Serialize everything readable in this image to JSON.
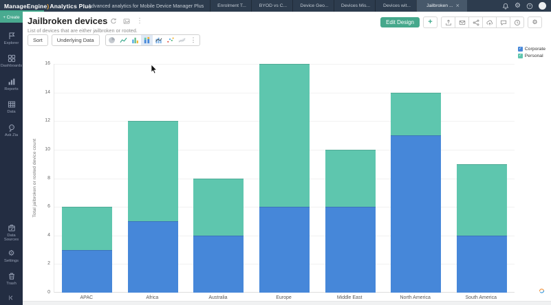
{
  "topbar": {
    "brand_part1": "ManageEngine",
    "brand_part2": "Analytics Plus",
    "workspace_label": "Advanced analytics for Mobile Device Manager Plus",
    "tabs": [
      {
        "label": "Enrolment T...",
        "active": false
      },
      {
        "label": "BYOD vs C...",
        "active": false
      },
      {
        "label": "Device Geo...",
        "active": false
      },
      {
        "label": "Devices Mis...",
        "active": false
      },
      {
        "label": "Devices wit...",
        "active": false
      },
      {
        "label": "Jailbroken ...",
        "active": true
      }
    ]
  },
  "sidebar": {
    "create_label": "+ Create",
    "items": [
      {
        "label": "Explorer",
        "icon": "explorer-icon"
      },
      {
        "label": "Dashboards",
        "icon": "dashboards-icon"
      },
      {
        "label": "Reports",
        "icon": "reports-icon"
      },
      {
        "label": "Data",
        "icon": "data-icon"
      },
      {
        "label": "Ask Zia",
        "icon": "ask-zia-icon"
      }
    ],
    "bottom_items": [
      {
        "label": "Data Sources",
        "icon": "data-sources-icon"
      },
      {
        "label": "Settings",
        "icon": "settings-icon"
      },
      {
        "label": "Trash",
        "icon": "trash-icon"
      }
    ]
  },
  "header": {
    "title": "Jailbroken devices",
    "subtitle": "List of devices that are either jailbroken or rooted.",
    "edit_design_label": "Edit Design",
    "action_buttons": [
      "export-icon",
      "email-icon",
      "share-icon",
      "publish-icon",
      "comment-icon",
      "history-icon"
    ]
  },
  "toolbar": {
    "sort_label": "Sort",
    "underlying_data_label": "Underlying Data",
    "chart_type_buttons": [
      {
        "icon": "pie-chart-icon",
        "active": false
      },
      {
        "icon": "line-chart-icon",
        "active": false
      },
      {
        "icon": "bar-chart-icon",
        "active": false
      },
      {
        "icon": "stacked-bar-chart-icon",
        "active": true
      },
      {
        "icon": "combo-chart-icon",
        "active": false
      },
      {
        "icon": "scatter-chart-icon",
        "active": false
      },
      {
        "icon": "trend-chart-icon",
        "active": false
      },
      {
        "icon": "more-options-icon",
        "active": false
      }
    ]
  },
  "chart_data": {
    "type": "bar",
    "stacked": true,
    "title": "Jailbroken devices",
    "categories": [
      "APAC",
      "Africa",
      "Australia",
      "Europe",
      "Middle East",
      "North America",
      "South America"
    ],
    "series": [
      {
        "name": "Corporate",
        "color": "#4687d9",
        "values": [
          3,
          5,
          4,
          6,
          6,
          11,
          4
        ]
      },
      {
        "name": "Personal",
        "color": "#5ec6ae",
        "values": [
          3,
          7,
          4,
          10,
          4,
          3,
          5
        ]
      }
    ],
    "xlabel": "",
    "ylabel": "Total jailbroken or rooted device count",
    "ylim": [
      0,
      16
    ],
    "ytick_step": 2,
    "grid": true,
    "legend_position": "top-right"
  },
  "colors": {
    "topbar_bg": "#2d3c4e",
    "sidebar_bg": "#232d42",
    "accent_teal": "#46a88c",
    "corporate_blue": "#4687d9",
    "personal_teal": "#5ec6ae"
  }
}
